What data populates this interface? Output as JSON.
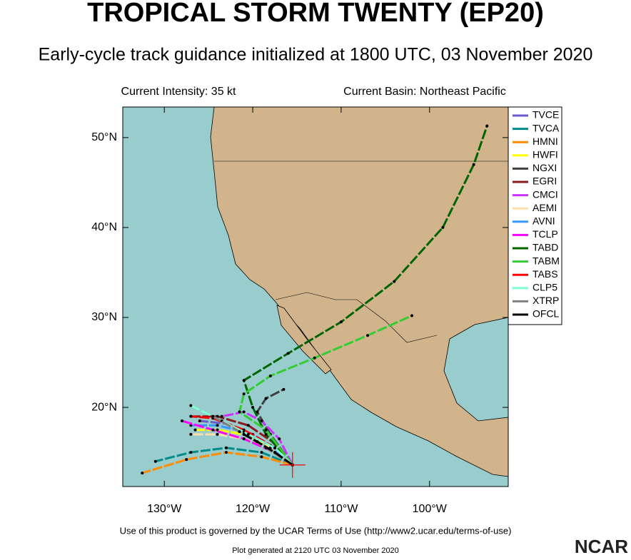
{
  "chart_data": {
    "type": "track",
    "title": "TROPICAL STORM TWENTY (EP20)",
    "subtitle": "Early-cycle track guidance initialized at 1800 UTC, 03 November 2020",
    "intensity": "Current Intensity: 35 kt",
    "basin": "Current Basin: Northeast Pacific",
    "footer": "Use of this product is governed by the UCAR Terms of Use (http://www2.ucar.edu/terms-of-use)",
    "generated": "Plot generated at 2120 UTC  03 November 2020",
    "logo": "NCAR",
    "xlim": [
      -134.7,
      -91.1
    ],
    "ylim": [
      11.2,
      53.4
    ],
    "xticks": [
      {
        "value": -130,
        "label": "130°W"
      },
      {
        "value": -120,
        "label": "120°W"
      },
      {
        "value": -110,
        "label": "110°W"
      },
      {
        "value": -100,
        "label": "100°W"
      }
    ],
    "yticks": [
      {
        "value": 20,
        "label": "20°N"
      },
      {
        "value": 30,
        "label": "30°N"
      },
      {
        "value": 40,
        "label": "40°N"
      },
      {
        "value": 50,
        "label": "50°N"
      }
    ],
    "grid": false,
    "current_position": {
      "lon": -115.5,
      "lat": 13.6,
      "color": "#ff0000"
    },
    "series": [
      {
        "name": "TVCE",
        "color": "#6a5acd",
        "x": [
          -115.5,
          -117.5,
          -120,
          -123,
          -126
        ],
        "values": [
          13.6,
          15.5,
          17,
          18.2,
          18.5
        ]
      },
      {
        "name": "TVCA",
        "color": "#008b8b",
        "x": [
          -115.5,
          -119,
          -123,
          -127,
          -131
        ],
        "values": [
          13.6,
          15,
          15.5,
          15,
          14
        ]
      },
      {
        "name": "HMNI",
        "color": "#ff8c00",
        "x": [
          -115.5,
          -119,
          -123,
          -127.5,
          -132.5
        ],
        "values": [
          13.6,
          14.5,
          15,
          14.2,
          12.7
        ]
      },
      {
        "name": "HWFI",
        "color": "#ffff00",
        "x": [
          -115.5,
          -118,
          -121,
          -124,
          -126.5
        ],
        "values": [
          13.6,
          15.5,
          17,
          17.5,
          17.5
        ]
      },
      {
        "name": "NGXI",
        "color": "#404040",
        "x": [
          -115.5,
          -118,
          -119.5,
          -118.5,
          -116.5
        ],
        "values": [
          13.6,
          17,
          19.5,
          21,
          22
        ]
      },
      {
        "name": "EGRI",
        "color": "#8b1a1a",
        "x": [
          -115.5,
          -117.5,
          -120.5,
          -124,
          -127
        ],
        "values": [
          13.6,
          16,
          18,
          19,
          19
        ]
      },
      {
        "name": "CMCI",
        "color": "#cc33ff",
        "x": [
          -115.5,
          -117,
          -119,
          -121,
          -123.5
        ],
        "values": [
          13.6,
          16.5,
          18.5,
          19.5,
          19
        ]
      },
      {
        "name": "AEMI",
        "color": "#ffdead",
        "x": [
          -115.5,
          -118,
          -121,
          -124,
          -127
        ],
        "values": [
          13.6,
          15.5,
          16.5,
          17,
          17
        ]
      },
      {
        "name": "AVNI",
        "color": "#3399ff",
        "x": [
          -115.5,
          -118,
          -121,
          -124,
          -127
        ],
        "values": [
          13.6,
          15.8,
          17.3,
          18,
          18
        ]
      },
      {
        "name": "TCLP",
        "color": "#ff00ff",
        "x": [
          -115.5,
          -117.5,
          -121,
          -124.5,
          -128
        ],
        "values": [
          13.6,
          15,
          16.5,
          17.5,
          18.5
        ]
      },
      {
        "name": "TABD",
        "color": "#006400",
        "x": [
          -115.5,
          -118.5,
          -120,
          -121,
          -116,
          -110,
          -104,
          -98.5,
          -95,
          -93.5
        ],
        "values": [
          13.6,
          17,
          20,
          23,
          26,
          29.5,
          34,
          40,
          47,
          51.3
        ]
      },
      {
        "name": "TABM",
        "color": "#33cc33",
        "x": [
          -115.5,
          -118.5,
          -121.5,
          -121,
          -118,
          -113,
          -107,
          -102
        ],
        "values": [
          13.6,
          17.5,
          19.5,
          21.5,
          23.5,
          25.5,
          28,
          30.2
        ]
      },
      {
        "name": "TABS",
        "color": "#ff0000",
        "x": [
          -115.5,
          -117.5,
          -121,
          -124.5,
          -127
        ],
        "values": [
          13.6,
          15.5,
          17.5,
          18.8,
          19
        ]
      },
      {
        "name": "CLP5",
        "color": "#7fffd4",
        "x": [
          -115.5,
          -117.5,
          -120.5,
          -123.5,
          -127
        ],
        "values": [
          13.6,
          15.5,
          17,
          18.5,
          20.2
        ]
      },
      {
        "name": "XTRP",
        "color": "#808080",
        "x": [
          -115.5,
          -118.5,
          -121.5,
          -124.5
        ],
        "values": [
          13.6,
          15.5,
          17.3,
          19
        ]
      },
      {
        "name": "OFCL",
        "color": "#000000",
        "x": [
          -115.5,
          -117.5,
          -119.5,
          -121
        ],
        "values": [
          13.6,
          15,
          16.2,
          17
        ]
      }
    ]
  }
}
